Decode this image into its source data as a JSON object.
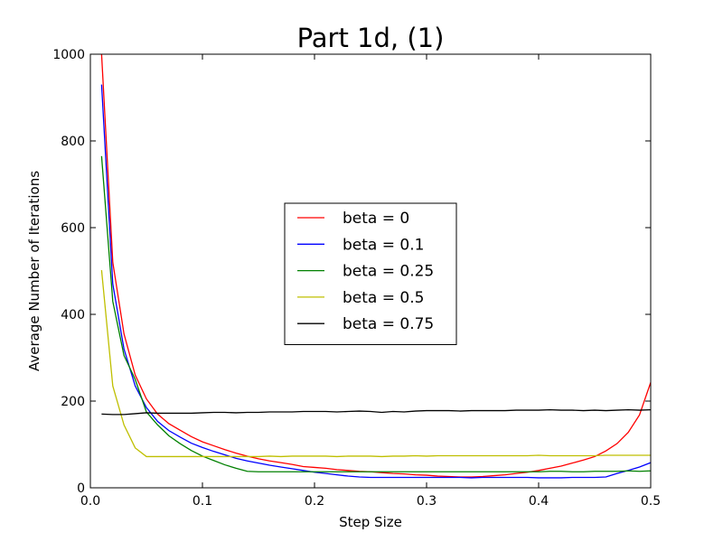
{
  "chart_data": {
    "type": "line",
    "title": "Part 1d, (1)",
    "xlabel": "Step Size",
    "ylabel": "Average Number of Iterations",
    "xlim": [
      0.0,
      0.5
    ],
    "ylim": [
      0,
      1000
    ],
    "xticks": [
      "0.0",
      "0.1",
      "0.2",
      "0.3",
      "0.4",
      "0.5"
    ],
    "yticks": [
      "0",
      "200",
      "400",
      "600",
      "800",
      "1000"
    ],
    "grid": false,
    "legend_position": "center",
    "x": [
      0.01,
      0.02,
      0.03,
      0.04,
      0.05,
      0.06,
      0.07,
      0.08,
      0.09,
      0.1,
      0.11,
      0.12,
      0.13,
      0.14,
      0.15,
      0.16,
      0.17,
      0.18,
      0.19,
      0.2,
      0.21,
      0.22,
      0.23,
      0.24,
      0.25,
      0.26,
      0.27,
      0.28,
      0.29,
      0.3,
      0.31,
      0.32,
      0.33,
      0.34,
      0.35,
      0.36,
      0.37,
      0.38,
      0.39,
      0.4,
      0.41,
      0.42,
      0.43,
      0.44,
      0.45,
      0.46,
      0.47,
      0.48,
      0.49,
      0.5
    ],
    "series": [
      {
        "name": "beta = 0",
        "color": "#ff0000",
        "values": [
          1000,
          520,
          355,
          260,
          205,
          170,
          148,
          133,
          118,
          106,
          97,
          88,
          80,
          73,
          67,
          62,
          58,
          54,
          49,
          47,
          45,
          42,
          40,
          38,
          37,
          35,
          33,
          32,
          30,
          29,
          27,
          26,
          25,
          25,
          26,
          28,
          30,
          33,
          36,
          40,
          45,
          50,
          57,
          64,
          72,
          85,
          102,
          128,
          168,
          243
        ]
      },
      {
        "name": "beta = 0.1",
        "color": "#0000ff",
        "values": [
          930,
          470,
          320,
          235,
          185,
          153,
          132,
          117,
          103,
          93,
          84,
          76,
          68,
          62,
          57,
          52,
          48,
          44,
          40,
          36,
          33,
          30,
          27,
          25,
          24,
          24,
          24,
          24,
          24,
          24,
          24,
          24,
          24,
          23,
          24,
          24,
          24,
          24,
          24,
          23,
          23,
          23,
          24,
          24,
          24,
          25,
          33,
          40,
          48,
          58
        ]
      },
      {
        "name": "beta = 0.25",
        "color": "#008000",
        "values": [
          765,
          430,
          305,
          250,
          175,
          145,
          120,
          102,
          86,
          73,
          63,
          53,
          45,
          38,
          37,
          37,
          37,
          37,
          37,
          37,
          37,
          37,
          37,
          37,
          37,
          37,
          37,
          37,
          37,
          37,
          37,
          37,
          37,
          37,
          37,
          37,
          37,
          37,
          37,
          37,
          38,
          38,
          37,
          37,
          38,
          38,
          38,
          39,
          38,
          39
        ]
      },
      {
        "name": "beta = 0.5",
        "color": "#bfbf00",
        "values": [
          502,
          235,
          145,
          92,
          72,
          72,
          72,
          72,
          72,
          72,
          72,
          72,
          72,
          72,
          72,
          73,
          72,
          73,
          73,
          73,
          73,
          72,
          73,
          73,
          73,
          72,
          73,
          73,
          74,
          73,
          74,
          74,
          74,
          74,
          74,
          74,
          74,
          74,
          74,
          75,
          74,
          74,
          74,
          74,
          74,
          75,
          75,
          75,
          75,
          75
        ]
      },
      {
        "name": "beta = 0.75",
        "color": "#000000",
        "values": [
          170,
          169,
          169,
          171,
          173,
          172,
          172,
          172,
          172,
          173,
          174,
          174,
          173,
          174,
          174,
          175,
          175,
          175,
          176,
          176,
          176,
          175,
          176,
          177,
          176,
          174,
          176,
          175,
          177,
          178,
          178,
          178,
          177,
          178,
          178,
          178,
          178,
          179,
          179,
          179,
          180,
          179,
          179,
          178,
          179,
          178,
          179,
          180,
          179,
          180
        ]
      }
    ]
  }
}
